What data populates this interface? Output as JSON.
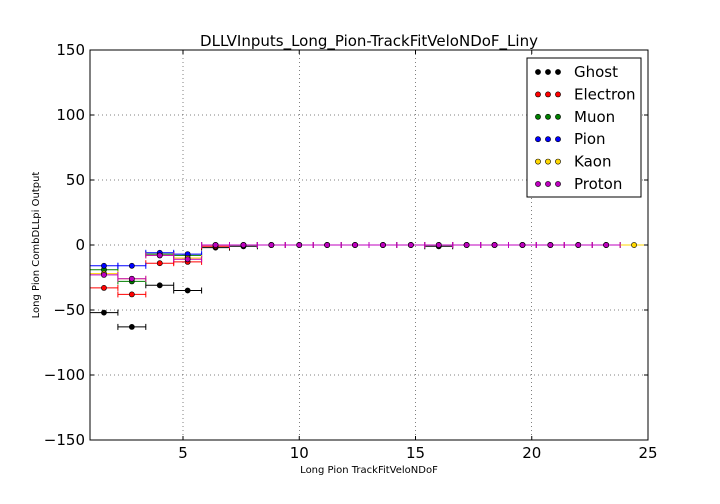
{
  "chart_data": {
    "type": "scatter",
    "title": "DLLVInputs_Long_Pion-TrackFitVeloNDoF_Liny",
    "xlabel": "Long Pion TrackFitVeloNDoF",
    "ylabel": "Long Pion CombDLLpi Output",
    "xlim": [
      1,
      25
    ],
    "ylim": [
      -150,
      150
    ],
    "xticks": [
      5,
      10,
      15,
      20,
      25
    ],
    "yticks": [
      150,
      100,
      50,
      0,
      -50,
      -100,
      -150
    ],
    "xtick_labels": [
      "5",
      "10",
      "15",
      "20",
      "25"
    ],
    "ytick_labels": [
      "150",
      "100",
      "50",
      "0",
      "−50",
      "−100",
      "−150"
    ],
    "grid": true,
    "legend_position": "top-right",
    "x": [
      1.6,
      2.8,
      4.0,
      5.2,
      6.4,
      7.6,
      8.8,
      10.0,
      11.2,
      12.4,
      13.6,
      14.8,
      16.0,
      17.2,
      18.4,
      19.6,
      20.8,
      22.0,
      23.2,
      24.4
    ],
    "x_halfwidth": 0.6,
    "series": [
      {
        "name": "Ghost",
        "color": "#000000",
        "values": [
          -52,
          -63,
          -31,
          -35,
          -2,
          -1,
          0,
          0,
          0,
          0,
          0,
          0,
          -1,
          0,
          0,
          0,
          0,
          0,
          0,
          null
        ]
      },
      {
        "name": "Electron",
        "color": "#ff0000",
        "values": [
          -33,
          -38,
          -14,
          -13,
          -1,
          0,
          0,
          0,
          0,
          0,
          0,
          0,
          0,
          0,
          0,
          0,
          0,
          0,
          0,
          null
        ]
      },
      {
        "name": "Muon",
        "color": "#008000",
        "values": [
          -19,
          -28,
          -7,
          -8,
          0,
          0,
          0,
          0,
          0,
          0,
          0,
          0,
          0,
          0,
          0,
          0,
          0,
          0,
          0,
          null
        ]
      },
      {
        "name": "Pion",
        "color": "#0000ff",
        "values": [
          -16,
          -16,
          -6,
          -7,
          0,
          0,
          0,
          0,
          0,
          0,
          0,
          0,
          0,
          0,
          0,
          0,
          0,
          0,
          0,
          null
        ]
      },
      {
        "name": "Kaon",
        "color": "#ffd700",
        "values": [
          -22,
          -26,
          -8,
          -10,
          0,
          0,
          0,
          0,
          0,
          0,
          0,
          0,
          0,
          0,
          0,
          0,
          0,
          0,
          0,
          0
        ]
      },
      {
        "name": "Proton",
        "color": "#bf00bf",
        "values": [
          -23,
          -26,
          -8,
          -11,
          0,
          0,
          0,
          0,
          0,
          0,
          0,
          0,
          0,
          0,
          0,
          0,
          0,
          0,
          0,
          null
        ]
      }
    ]
  }
}
